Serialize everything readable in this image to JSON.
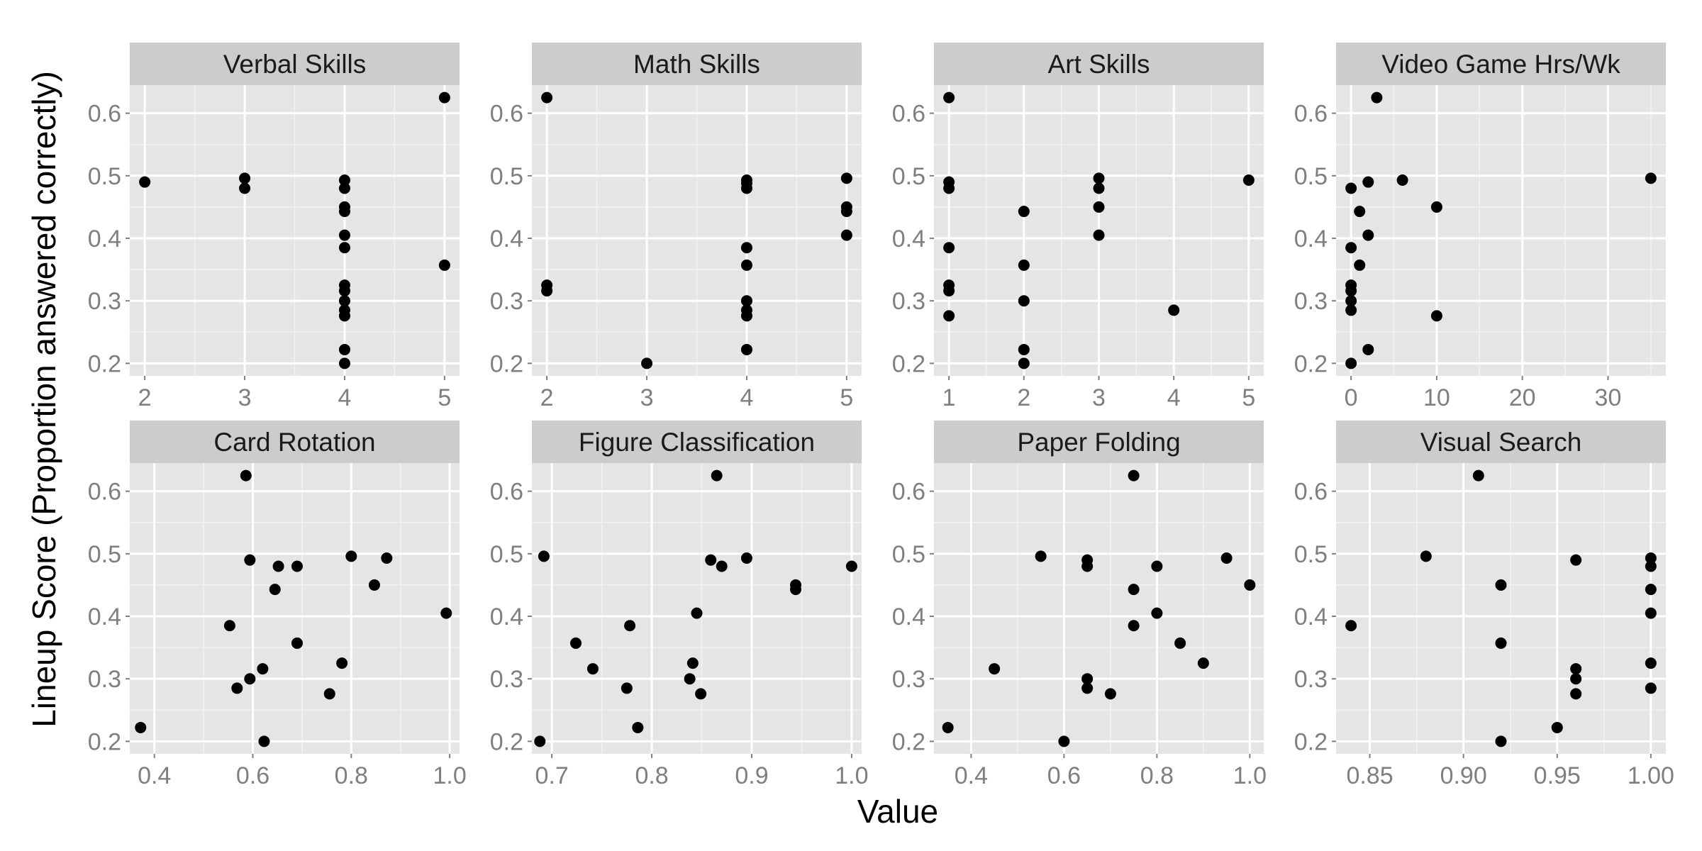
{
  "figure": {
    "xlabel": "Value",
    "ylabel": "Lineup Score (Proportion answered correctly)"
  },
  "colors": {
    "panel_background": "#e5e5e5",
    "grid_major": "#ffffff",
    "grid_minor": "#f2f2f2",
    "strip_background": "#cccccc",
    "point": "#000000",
    "tick_text": "#7f7f7f"
  },
  "chart_data": [
    {
      "type": "scatter",
      "title": "Verbal Skills",
      "xlim": [
        1.85,
        5.15
      ],
      "ylim": [
        0.18,
        0.645
      ],
      "xticks": [
        2,
        3,
        4,
        5
      ],
      "xtick_labels": [
        "2",
        "3",
        "4",
        "5"
      ],
      "yticks": [
        0.2,
        0.3,
        0.4,
        0.5,
        0.6
      ],
      "ytick_labels": [
        "0.2",
        "0.3",
        "0.4",
        "0.5",
        "0.6"
      ],
      "grid": true,
      "points": [
        [
          2,
          0.49
        ],
        [
          3,
          0.496
        ],
        [
          3,
          0.48
        ],
        [
          4,
          0.493
        ],
        [
          4,
          0.48
        ],
        [
          4,
          0.45
        ],
        [
          4,
          0.443
        ],
        [
          4,
          0.405
        ],
        [
          4,
          0.385
        ],
        [
          4,
          0.325
        ],
        [
          4,
          0.316
        ],
        [
          4,
          0.3
        ],
        [
          4,
          0.285
        ],
        [
          4,
          0.276
        ],
        [
          4,
          0.222
        ],
        [
          4,
          0.2
        ],
        [
          5,
          0.625
        ],
        [
          5,
          0.357
        ]
      ]
    },
    {
      "type": "scatter",
      "title": "Math Skills",
      "xlim": [
        1.85,
        5.15
      ],
      "ylim": [
        0.18,
        0.645
      ],
      "xticks": [
        2,
        3,
        4,
        5
      ],
      "xtick_labels": [
        "2",
        "3",
        "4",
        "5"
      ],
      "yticks": [
        0.2,
        0.3,
        0.4,
        0.5,
        0.6
      ],
      "ytick_labels": [
        "0.2",
        "0.3",
        "0.4",
        "0.5",
        "0.6"
      ],
      "grid": true,
      "points": [
        [
          2,
          0.625
        ],
        [
          2,
          0.325
        ],
        [
          2,
          0.316
        ],
        [
          3,
          0.2
        ],
        [
          4,
          0.493
        ],
        [
          4,
          0.488
        ],
        [
          4,
          0.48
        ],
        [
          4,
          0.385
        ],
        [
          4,
          0.357
        ],
        [
          4,
          0.3
        ],
        [
          4,
          0.285
        ],
        [
          4,
          0.276
        ],
        [
          4,
          0.222
        ],
        [
          5,
          0.496
        ],
        [
          5,
          0.45
        ],
        [
          5,
          0.443
        ],
        [
          5,
          0.405
        ]
      ]
    },
    {
      "type": "scatter",
      "title": "Art Skills",
      "xlim": [
        0.8,
        5.2
      ],
      "ylim": [
        0.18,
        0.645
      ],
      "xticks": [
        1,
        2,
        3,
        4,
        5
      ],
      "xtick_labels": [
        "1",
        "2",
        "3",
        "4",
        "5"
      ],
      "yticks": [
        0.2,
        0.3,
        0.4,
        0.5,
        0.6
      ],
      "ytick_labels": [
        "0.2",
        "0.3",
        "0.4",
        "0.5",
        "0.6"
      ],
      "grid": true,
      "points": [
        [
          1,
          0.625
        ],
        [
          1,
          0.49
        ],
        [
          1,
          0.48
        ],
        [
          1,
          0.385
        ],
        [
          1,
          0.325
        ],
        [
          1,
          0.316
        ],
        [
          1,
          0.276
        ],
        [
          2,
          0.443
        ],
        [
          2,
          0.357
        ],
        [
          2,
          0.3
        ],
        [
          2,
          0.222
        ],
        [
          2,
          0.2
        ],
        [
          3,
          0.496
        ],
        [
          3,
          0.48
        ],
        [
          3,
          0.45
        ],
        [
          3,
          0.405
        ],
        [
          4,
          0.285
        ],
        [
          5,
          0.493
        ]
      ]
    },
    {
      "type": "scatter",
      "title": "Video Game Hrs/Wk",
      "xlim": [
        -1.75,
        36.75
      ],
      "ylim": [
        0.18,
        0.645
      ],
      "xticks": [
        0,
        10,
        20,
        30
      ],
      "xtick_labels": [
        "0",
        "10",
        "20",
        "30"
      ],
      "yticks": [
        0.2,
        0.3,
        0.4,
        0.5,
        0.6
      ],
      "ytick_labels": [
        "0.2",
        "0.3",
        "0.4",
        "0.5",
        "0.6"
      ],
      "grid": true,
      "points": [
        [
          0,
          0.48
        ],
        [
          0,
          0.385
        ],
        [
          0,
          0.325
        ],
        [
          0,
          0.316
        ],
        [
          0,
          0.3
        ],
        [
          0,
          0.285
        ],
        [
          0,
          0.2
        ],
        [
          1,
          0.443
        ],
        [
          1,
          0.357
        ],
        [
          2,
          0.49
        ],
        [
          2,
          0.405
        ],
        [
          2,
          0.222
        ],
        [
          3,
          0.625
        ],
        [
          6,
          0.493
        ],
        [
          10,
          0.45
        ],
        [
          10,
          0.276
        ],
        [
          35,
          0.496
        ]
      ]
    },
    {
      "type": "scatter",
      "title": "Card Rotation",
      "xlim": [
        0.35,
        1.02
      ],
      "ylim": [
        0.18,
        0.645
      ],
      "xticks": [
        0.4,
        0.6,
        0.8,
        1.0
      ],
      "xtick_labels": [
        "0.4",
        "0.6",
        "0.8",
        "1.0"
      ],
      "yticks": [
        0.2,
        0.3,
        0.4,
        0.5,
        0.6
      ],
      "ytick_labels": [
        "0.2",
        "0.3",
        "0.4",
        "0.5",
        "0.6"
      ],
      "grid": true,
      "points": [
        [
          0.372,
          0.222
        ],
        [
          0.553,
          0.385
        ],
        [
          0.568,
          0.285
        ],
        [
          0.586,
          0.625
        ],
        [
          0.594,
          0.49
        ],
        [
          0.594,
          0.3
        ],
        [
          0.62,
          0.316
        ],
        [
          0.623,
          0.2
        ],
        [
          0.645,
          0.443
        ],
        [
          0.652,
          0.48
        ],
        [
          0.69,
          0.48
        ],
        [
          0.69,
          0.357
        ],
        [
          0.756,
          0.276
        ],
        [
          0.781,
          0.325
        ],
        [
          0.8,
          0.496
        ],
        [
          0.847,
          0.45
        ],
        [
          0.872,
          0.493
        ],
        [
          0.993,
          0.405
        ]
      ]
    },
    {
      "type": "scatter",
      "title": "Figure Classification",
      "xlim": [
        0.68,
        1.01
      ],
      "ylim": [
        0.18,
        0.645
      ],
      "xticks": [
        0.7,
        0.8,
        0.9,
        1.0
      ],
      "xtick_labels": [
        "0.7",
        "0.8",
        "0.9",
        "1.0"
      ],
      "yticks": [
        0.2,
        0.3,
        0.4,
        0.5,
        0.6
      ],
      "ytick_labels": [
        "0.2",
        "0.3",
        "0.4",
        "0.5",
        "0.6"
      ],
      "grid": true,
      "points": [
        [
          0.688,
          0.2
        ],
        [
          0.692,
          0.496
        ],
        [
          0.724,
          0.357
        ],
        [
          0.741,
          0.316
        ],
        [
          0.775,
          0.285
        ],
        [
          0.778,
          0.385
        ],
        [
          0.786,
          0.222
        ],
        [
          0.838,
          0.3
        ],
        [
          0.841,
          0.325
        ],
        [
          0.845,
          0.405
        ],
        [
          0.849,
          0.276
        ],
        [
          0.859,
          0.49
        ],
        [
          0.865,
          0.625
        ],
        [
          0.87,
          0.48
        ],
        [
          0.895,
          0.493
        ],
        [
          0.944,
          0.45
        ],
        [
          0.944,
          0.443
        ],
        [
          1.0,
          0.48
        ]
      ]
    },
    {
      "type": "scatter",
      "title": "Paper Folding",
      "xlim": [
        0.32,
        1.03
      ],
      "ylim": [
        0.18,
        0.645
      ],
      "xticks": [
        0.4,
        0.6,
        0.8,
        1.0
      ],
      "xtick_labels": [
        "0.4",
        "0.6",
        "0.8",
        "1.0"
      ],
      "yticks": [
        0.2,
        0.3,
        0.4,
        0.5,
        0.6
      ],
      "ytick_labels": [
        "0.2",
        "0.3",
        "0.4",
        "0.5",
        "0.6"
      ],
      "grid": true,
      "points": [
        [
          0.35,
          0.222
        ],
        [
          0.45,
          0.316
        ],
        [
          0.55,
          0.496
        ],
        [
          0.6,
          0.2
        ],
        [
          0.65,
          0.49
        ],
        [
          0.65,
          0.48
        ],
        [
          0.65,
          0.3
        ],
        [
          0.65,
          0.285
        ],
        [
          0.7,
          0.276
        ],
        [
          0.75,
          0.625
        ],
        [
          0.75,
          0.443
        ],
        [
          0.75,
          0.385
        ],
        [
          0.8,
          0.48
        ],
        [
          0.8,
          0.405
        ],
        [
          0.85,
          0.357
        ],
        [
          0.9,
          0.325
        ],
        [
          0.95,
          0.493
        ],
        [
          1.0,
          0.45
        ]
      ]
    },
    {
      "type": "scatter",
      "title": "Visual Search",
      "xlim": [
        0.832,
        1.008
      ],
      "ylim": [
        0.18,
        0.645
      ],
      "xticks": [
        0.85,
        0.9,
        0.95,
        1.0
      ],
      "xtick_labels": [
        "0.85",
        "0.90",
        "0.95",
        "1.00"
      ],
      "yticks": [
        0.2,
        0.3,
        0.4,
        0.5,
        0.6
      ],
      "ytick_labels": [
        "0.2",
        "0.3",
        "0.4",
        "0.5",
        "0.6"
      ],
      "grid": true,
      "points": [
        [
          0.84,
          0.385
        ],
        [
          0.88,
          0.496
        ],
        [
          0.908,
          0.625
        ],
        [
          0.92,
          0.45
        ],
        [
          0.92,
          0.357
        ],
        [
          0.92,
          0.2
        ],
        [
          0.95,
          0.222
        ],
        [
          0.96,
          0.49
        ],
        [
          0.96,
          0.316
        ],
        [
          0.96,
          0.3
        ],
        [
          0.96,
          0.276
        ],
        [
          1.0,
          0.493
        ],
        [
          1.0,
          0.48
        ],
        [
          1.0,
          0.443
        ],
        [
          1.0,
          0.405
        ],
        [
          1.0,
          0.325
        ],
        [
          1.0,
          0.285
        ]
      ]
    }
  ]
}
